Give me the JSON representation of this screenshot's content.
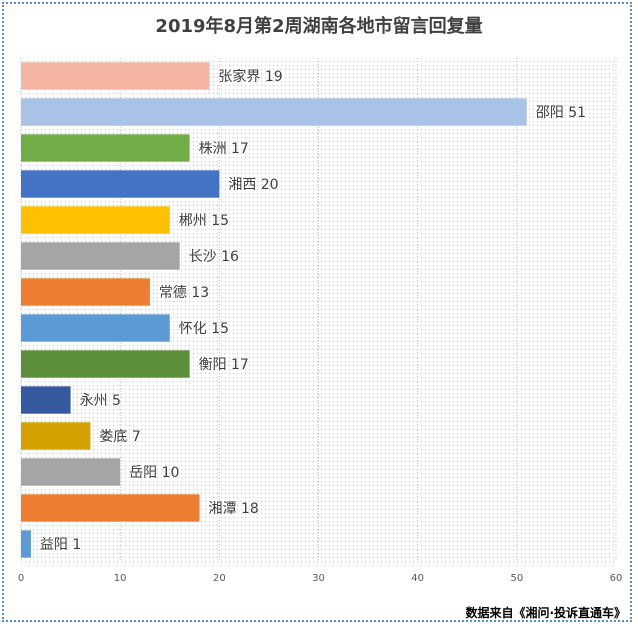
{
  "chart_data": {
    "type": "bar",
    "orientation": "horizontal",
    "title": "2019年8月第2周湖南各地市留言回复量",
    "categories": [
      "张家界",
      "邵阳",
      "株洲",
      "湘西",
      "郴州",
      "长沙",
      "常德",
      "怀化",
      "衡阳",
      "永州",
      "娄底",
      "岳阳",
      "湘潭",
      "益阳"
    ],
    "values": [
      19,
      51,
      17,
      20,
      15,
      16,
      13,
      15,
      17,
      5,
      7,
      10,
      18,
      1
    ],
    "colors": [
      "#f4b6a2",
      "#a9c3e6",
      "#70ad47",
      "#4472c4",
      "#ffc000",
      "#a5a5a5",
      "#ed7d31",
      "#5b9bd5",
      "#5b8f3a",
      "#355aa0",
      "#d4a100",
      "#a5a5a5",
      "#ed7d31",
      "#5b9bd5"
    ],
    "xlim": [
      0,
      60
    ],
    "xticks": [
      0,
      10,
      20,
      30,
      40,
      50,
      60
    ],
    "grid": true,
    "legend": "none"
  },
  "source_text": "数据来自《湘问·投诉直通车》"
}
